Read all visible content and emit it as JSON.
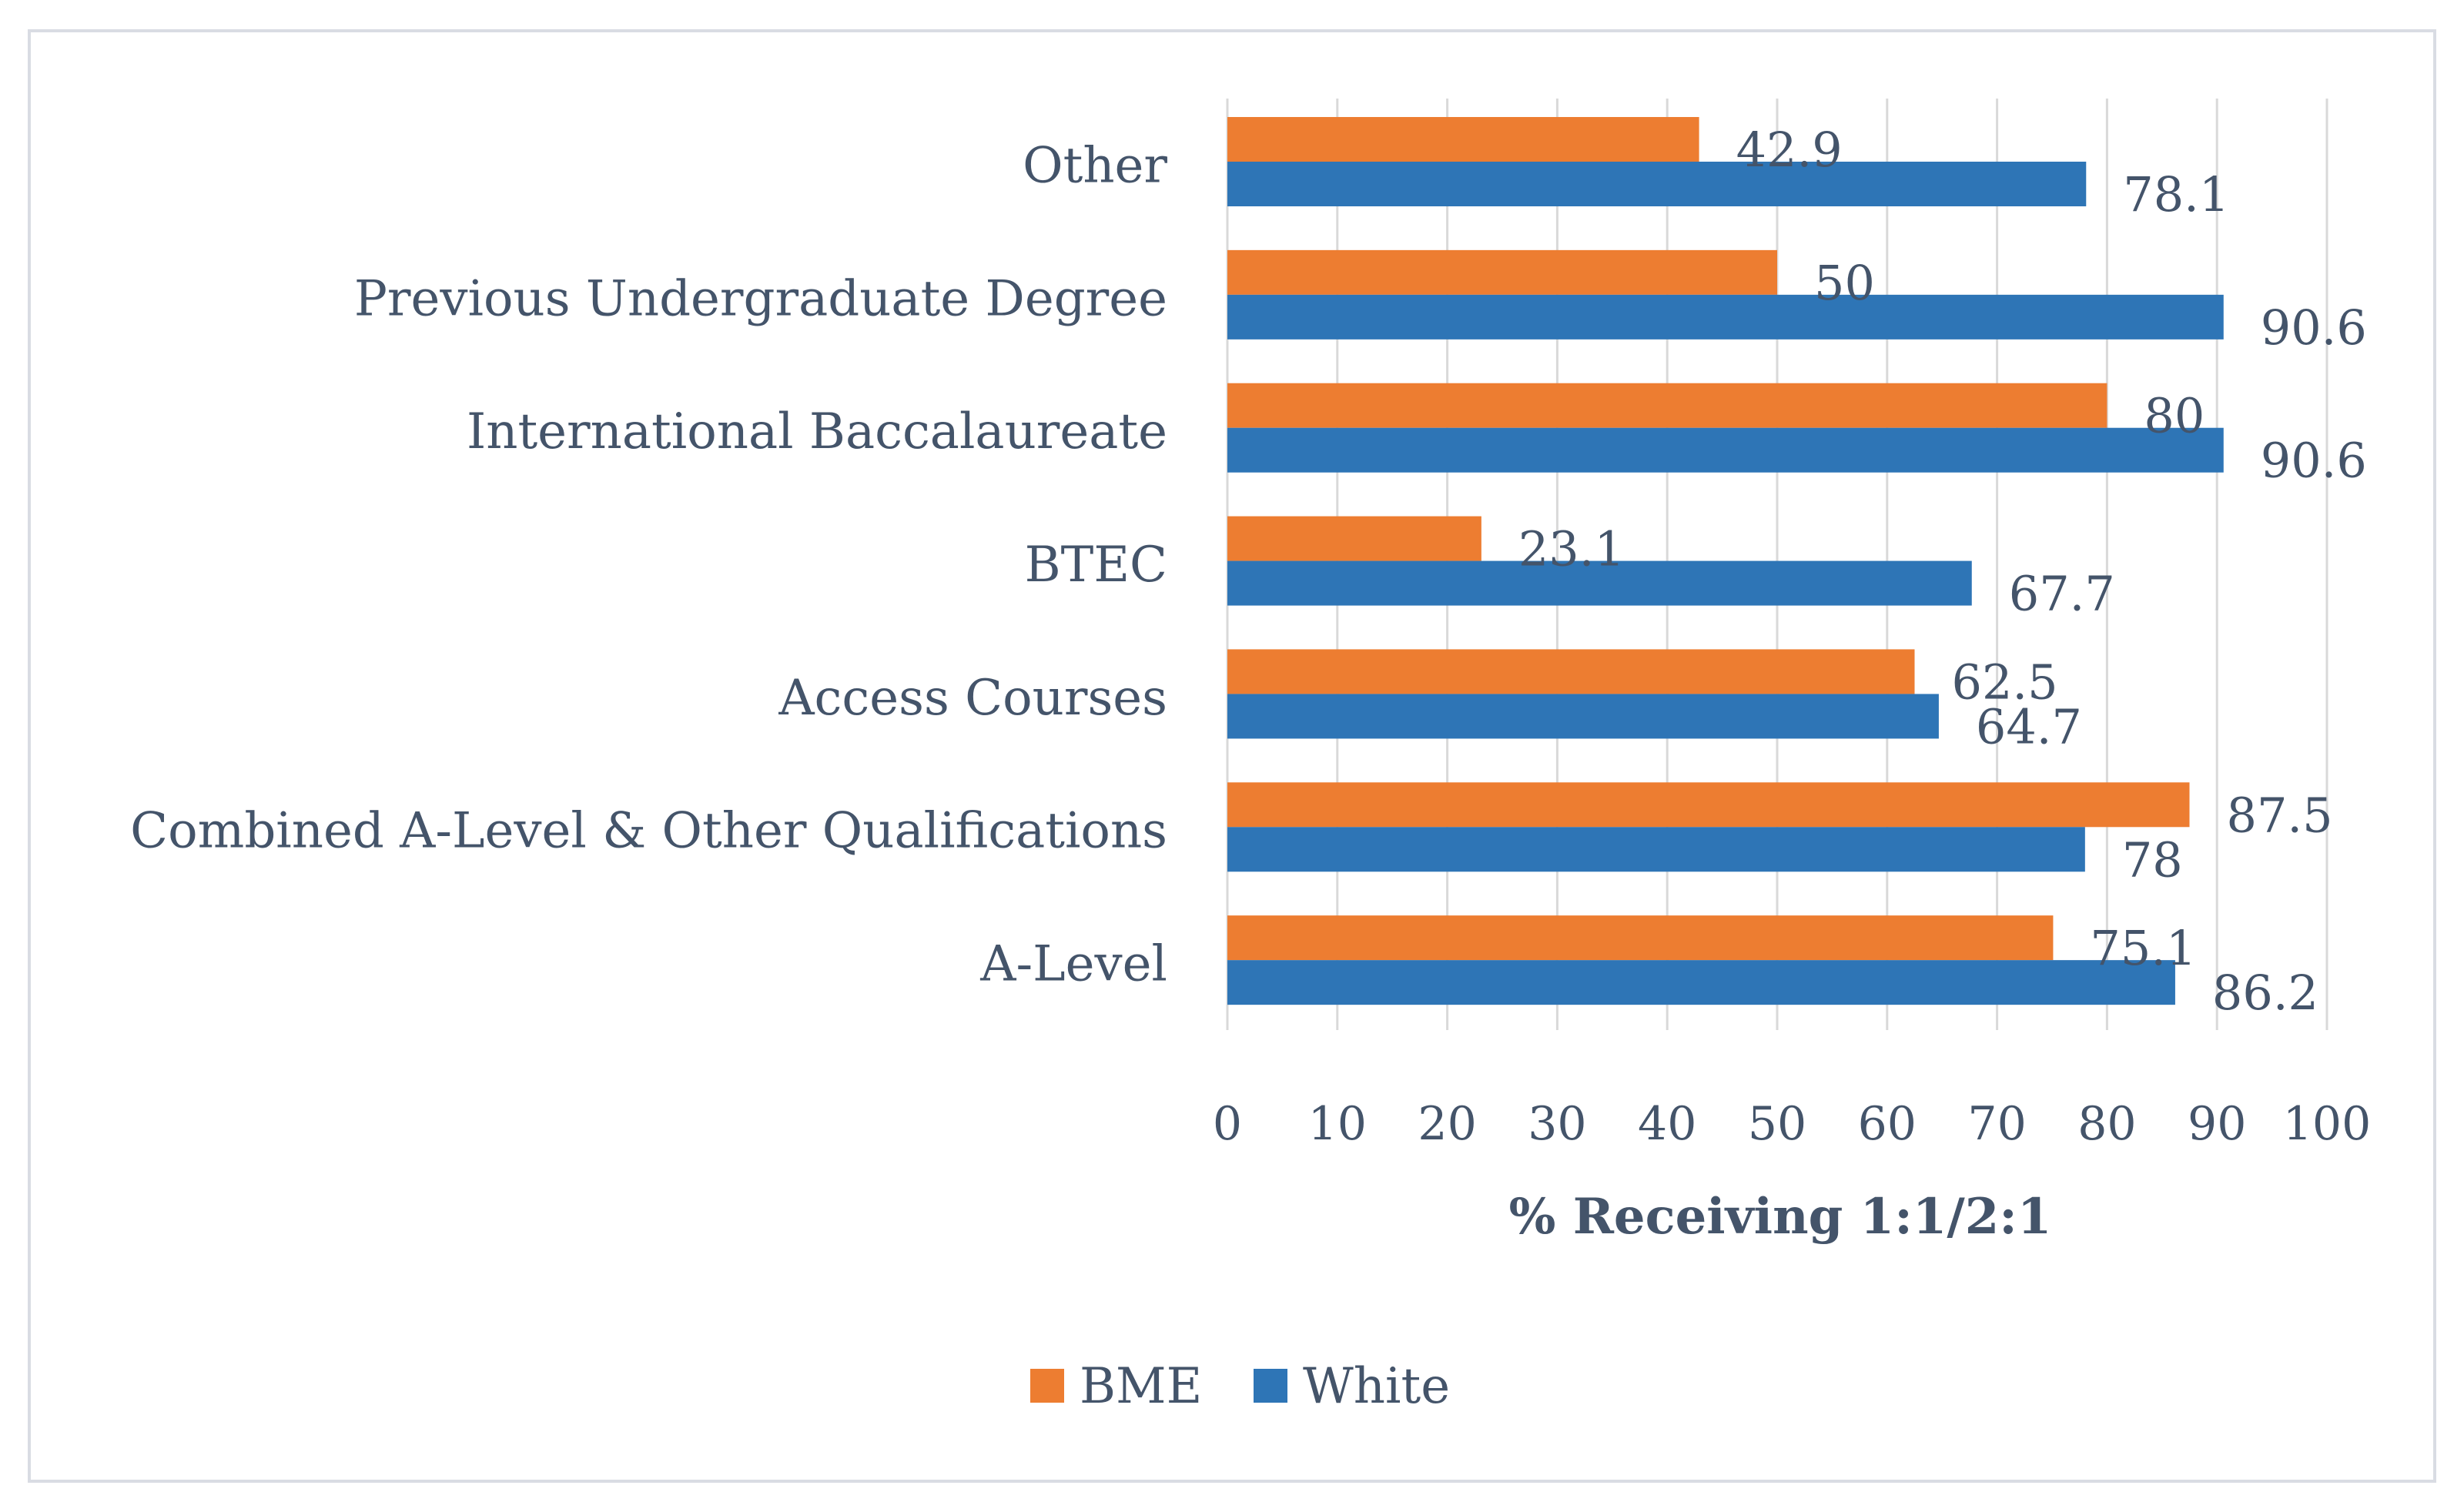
{
  "chart_data": {
    "type": "bar",
    "orientation": "horizontal",
    "title": "",
    "xlabel": "% Receiving 1:1/2:1",
    "ylabel": "",
    "xlim": [
      0,
      100
    ],
    "x_ticks": [
      0,
      10,
      20,
      30,
      40,
      50,
      60,
      70,
      80,
      90,
      100
    ],
    "grid": true,
    "legend_position": "bottom",
    "categories": [
      "Other",
      "Previous Undergraduate Degree",
      "International Baccalaureate",
      "BTEC",
      "Access Courses",
      "Combined A-Level & Other Qualifications",
      "A-Level"
    ],
    "series": [
      {
        "name": "BME",
        "color": "#ed7d31",
        "values": [
          42.9,
          50,
          80,
          23.1,
          62.5,
          87.5,
          75.1
        ]
      },
      {
        "name": "White",
        "color": "#2e75b6",
        "values": [
          78.1,
          90.6,
          90.6,
          67.7,
          64.7,
          78,
          86.2
        ]
      }
    ]
  }
}
